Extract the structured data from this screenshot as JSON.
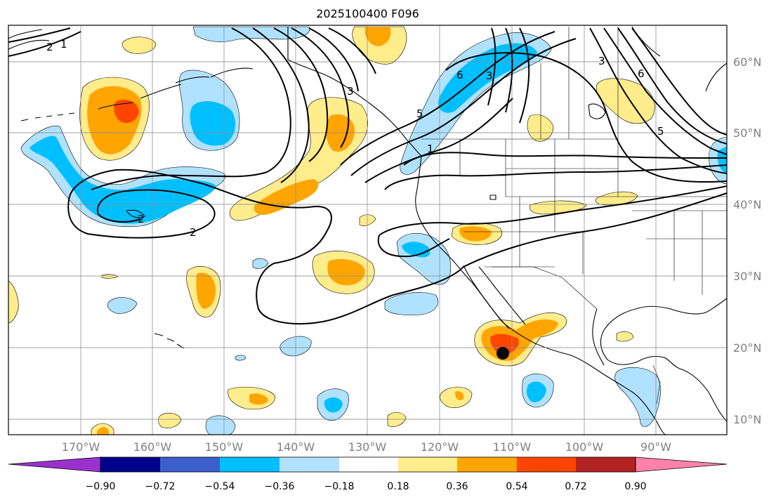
{
  "title": "2025100400 F096",
  "map": {
    "lon_ticks": [
      "170°W",
      "160°W",
      "150°W",
      "140°W",
      "130°W",
      "120°W",
      "110°W",
      "100°W",
      "90°W"
    ],
    "lat_ticks": [
      "60°N",
      "50°N",
      "40°N",
      "30°N",
      "20°N",
      "10°N"
    ],
    "contour_labels": [
      "2",
      "1",
      "2",
      "2",
      "3",
      "5",
      "6",
      "3",
      "1",
      "3",
      "6",
      "5"
    ],
    "colors": {
      "land_lines": "#000000",
      "grid": "#8c8c8c",
      "tick_text": "#808080"
    }
  },
  "colorbar": {
    "labels": [
      "−0.90",
      "−0.72",
      "−0.54",
      "−0.36",
      "−0.18",
      "0.18",
      "0.36",
      "0.54",
      "0.72",
      "0.90"
    ],
    "colors": [
      "#9932cc",
      "#00008b",
      "#3a5fcd",
      "#00bfff",
      "#b0e2ff",
      "#ffffff",
      "#ffec8b",
      "#ffa500",
      "#ff4500",
      "#b22222",
      "#ff82ab"
    ]
  }
}
